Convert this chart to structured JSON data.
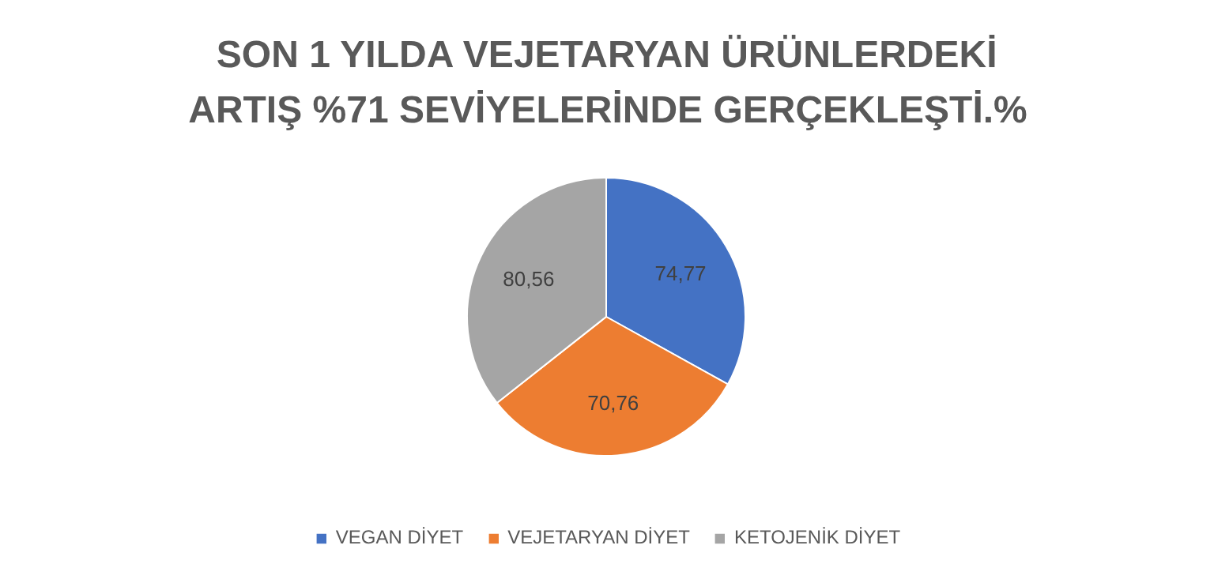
{
  "chart_data": {
    "type": "pie",
    "title": "SON 1 YILDA VEJETARYAN ÜRÜNLERDEKİ\nARTIŞ %71 SEVİYELERİNDE GERÇEKLEŞTİ.%",
    "categories": [
      "VEGAN DİYET",
      "VEJETARYAN DİYET",
      "KETOJENİK DİYET"
    ],
    "values": [
      74.77,
      70.76,
      80.56
    ],
    "value_labels": [
      "74,77",
      "70,76",
      "80,56"
    ],
    "colors": [
      "#4472c4",
      "#ed7d31",
      "#a5a5a5"
    ],
    "legend": "bottom"
  }
}
